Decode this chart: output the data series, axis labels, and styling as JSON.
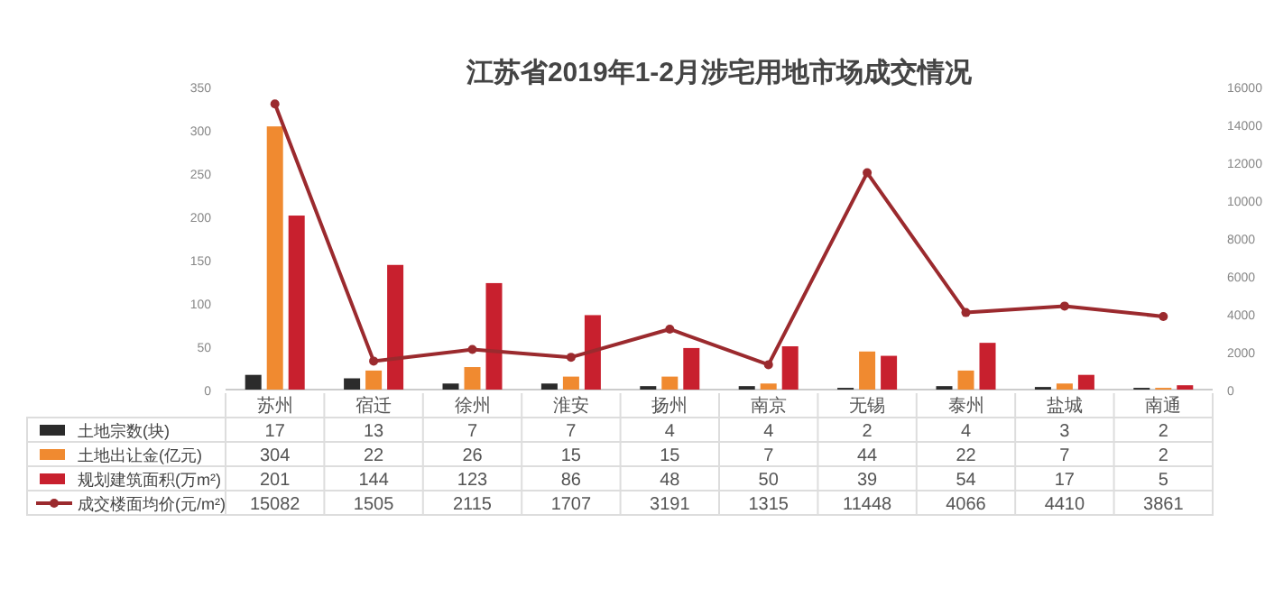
{
  "chart_data": {
    "type": "bar",
    "title": "江苏省2019年1-2月涉宅用地市场成交情况",
    "categories": [
      "苏州",
      "宿迁",
      "徐州",
      "淮安",
      "扬州",
      "南京",
      "无锡",
      "泰州",
      "盐城",
      "南通"
    ],
    "series": [
      {
        "name": "土地宗数(块)",
        "color": "#2b2b2b",
        "values": [
          17,
          13,
          7,
          7,
          4,
          4,
          2,
          4,
          3,
          2
        ]
      },
      {
        "name": "土地出让金(亿元)",
        "color": "#f08a30",
        "values": [
          304,
          22,
          26,
          15,
          15,
          7,
          44,
          22,
          7,
          2
        ]
      },
      {
        "name": "规划建筑面积(万m²)",
        "color": "#c8202e",
        "values": [
          201,
          144,
          123,
          86,
          48,
          50,
          39,
          54,
          17,
          5
        ]
      },
      {
        "name": "成交楼面均价(元/m²)",
        "color": "#9b2a2e",
        "type": "line",
        "axis": "y2",
        "marker": "circle",
        "values": [
          15082,
          1505,
          2115,
          1707,
          3191,
          1315,
          11448,
          4066,
          4410,
          3861
        ]
      }
    ],
    "ylim": [
      0,
      350
    ],
    "yticks": [
      0,
      50,
      100,
      150,
      200,
      250,
      300,
      350
    ],
    "y2lim": [
      0,
      16000
    ],
    "y2ticks": [
      0,
      2000,
      4000,
      6000,
      8000,
      10000,
      12000,
      14000,
      16000
    ],
    "data_labels": true,
    "legend": "bottom",
    "grid": false
  }
}
